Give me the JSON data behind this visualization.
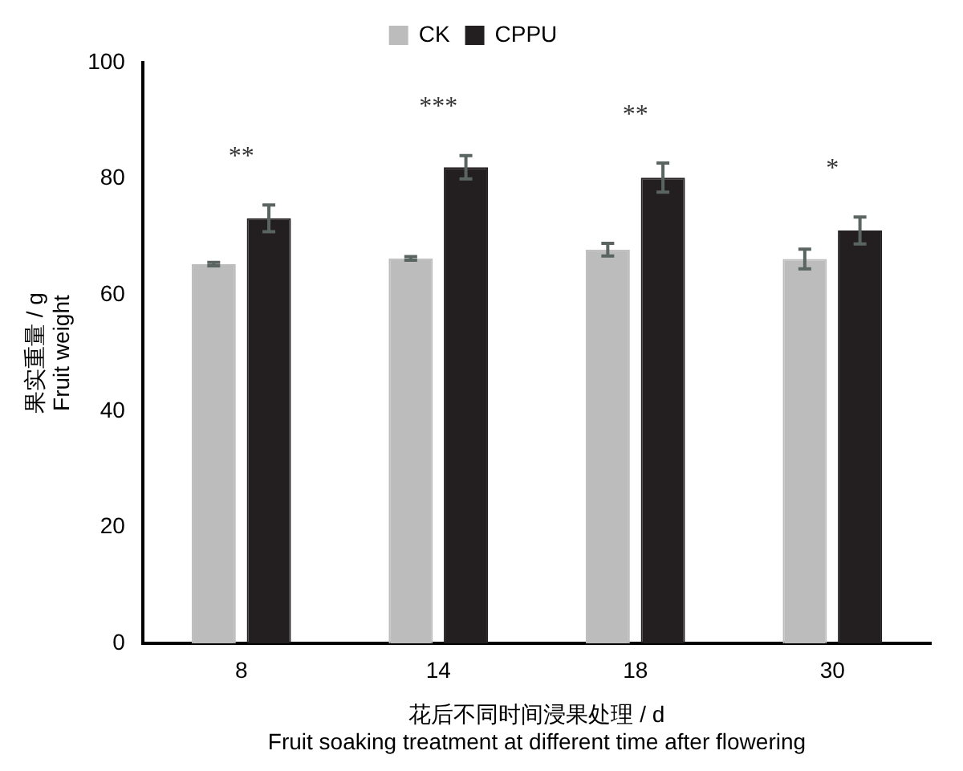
{
  "chart_data": {
    "type": "bar",
    "categories": [
      "8",
      "14",
      "18",
      "30"
    ],
    "series": [
      {
        "name": "CK",
        "color": "#bcbcbc",
        "values": [
          65.3,
          66.3,
          67.8,
          66.2
        ],
        "errors": [
          0.3,
          0.3,
          1.1,
          1.7
        ]
      },
      {
        "name": "CPPU",
        "color": "#231f20",
        "values": [
          73.2,
          82,
          80.2,
          71.1
        ],
        "errors": [
          2.3,
          2,
          2.5,
          2.3
        ]
      }
    ],
    "ylim": [
      0,
      100
    ],
    "yticks": [
      0,
      20,
      40,
      60,
      80,
      100
    ],
    "grid": false,
    "legend": "top",
    "ylabel": "果实重量 / g\nFruit weight",
    "xlabel": "花后不同时间浸果处理 / d\nFruit soaking treatment at different time after flowering",
    "annotations": [
      "**",
      "***",
      "**",
      "*"
    ]
  }
}
